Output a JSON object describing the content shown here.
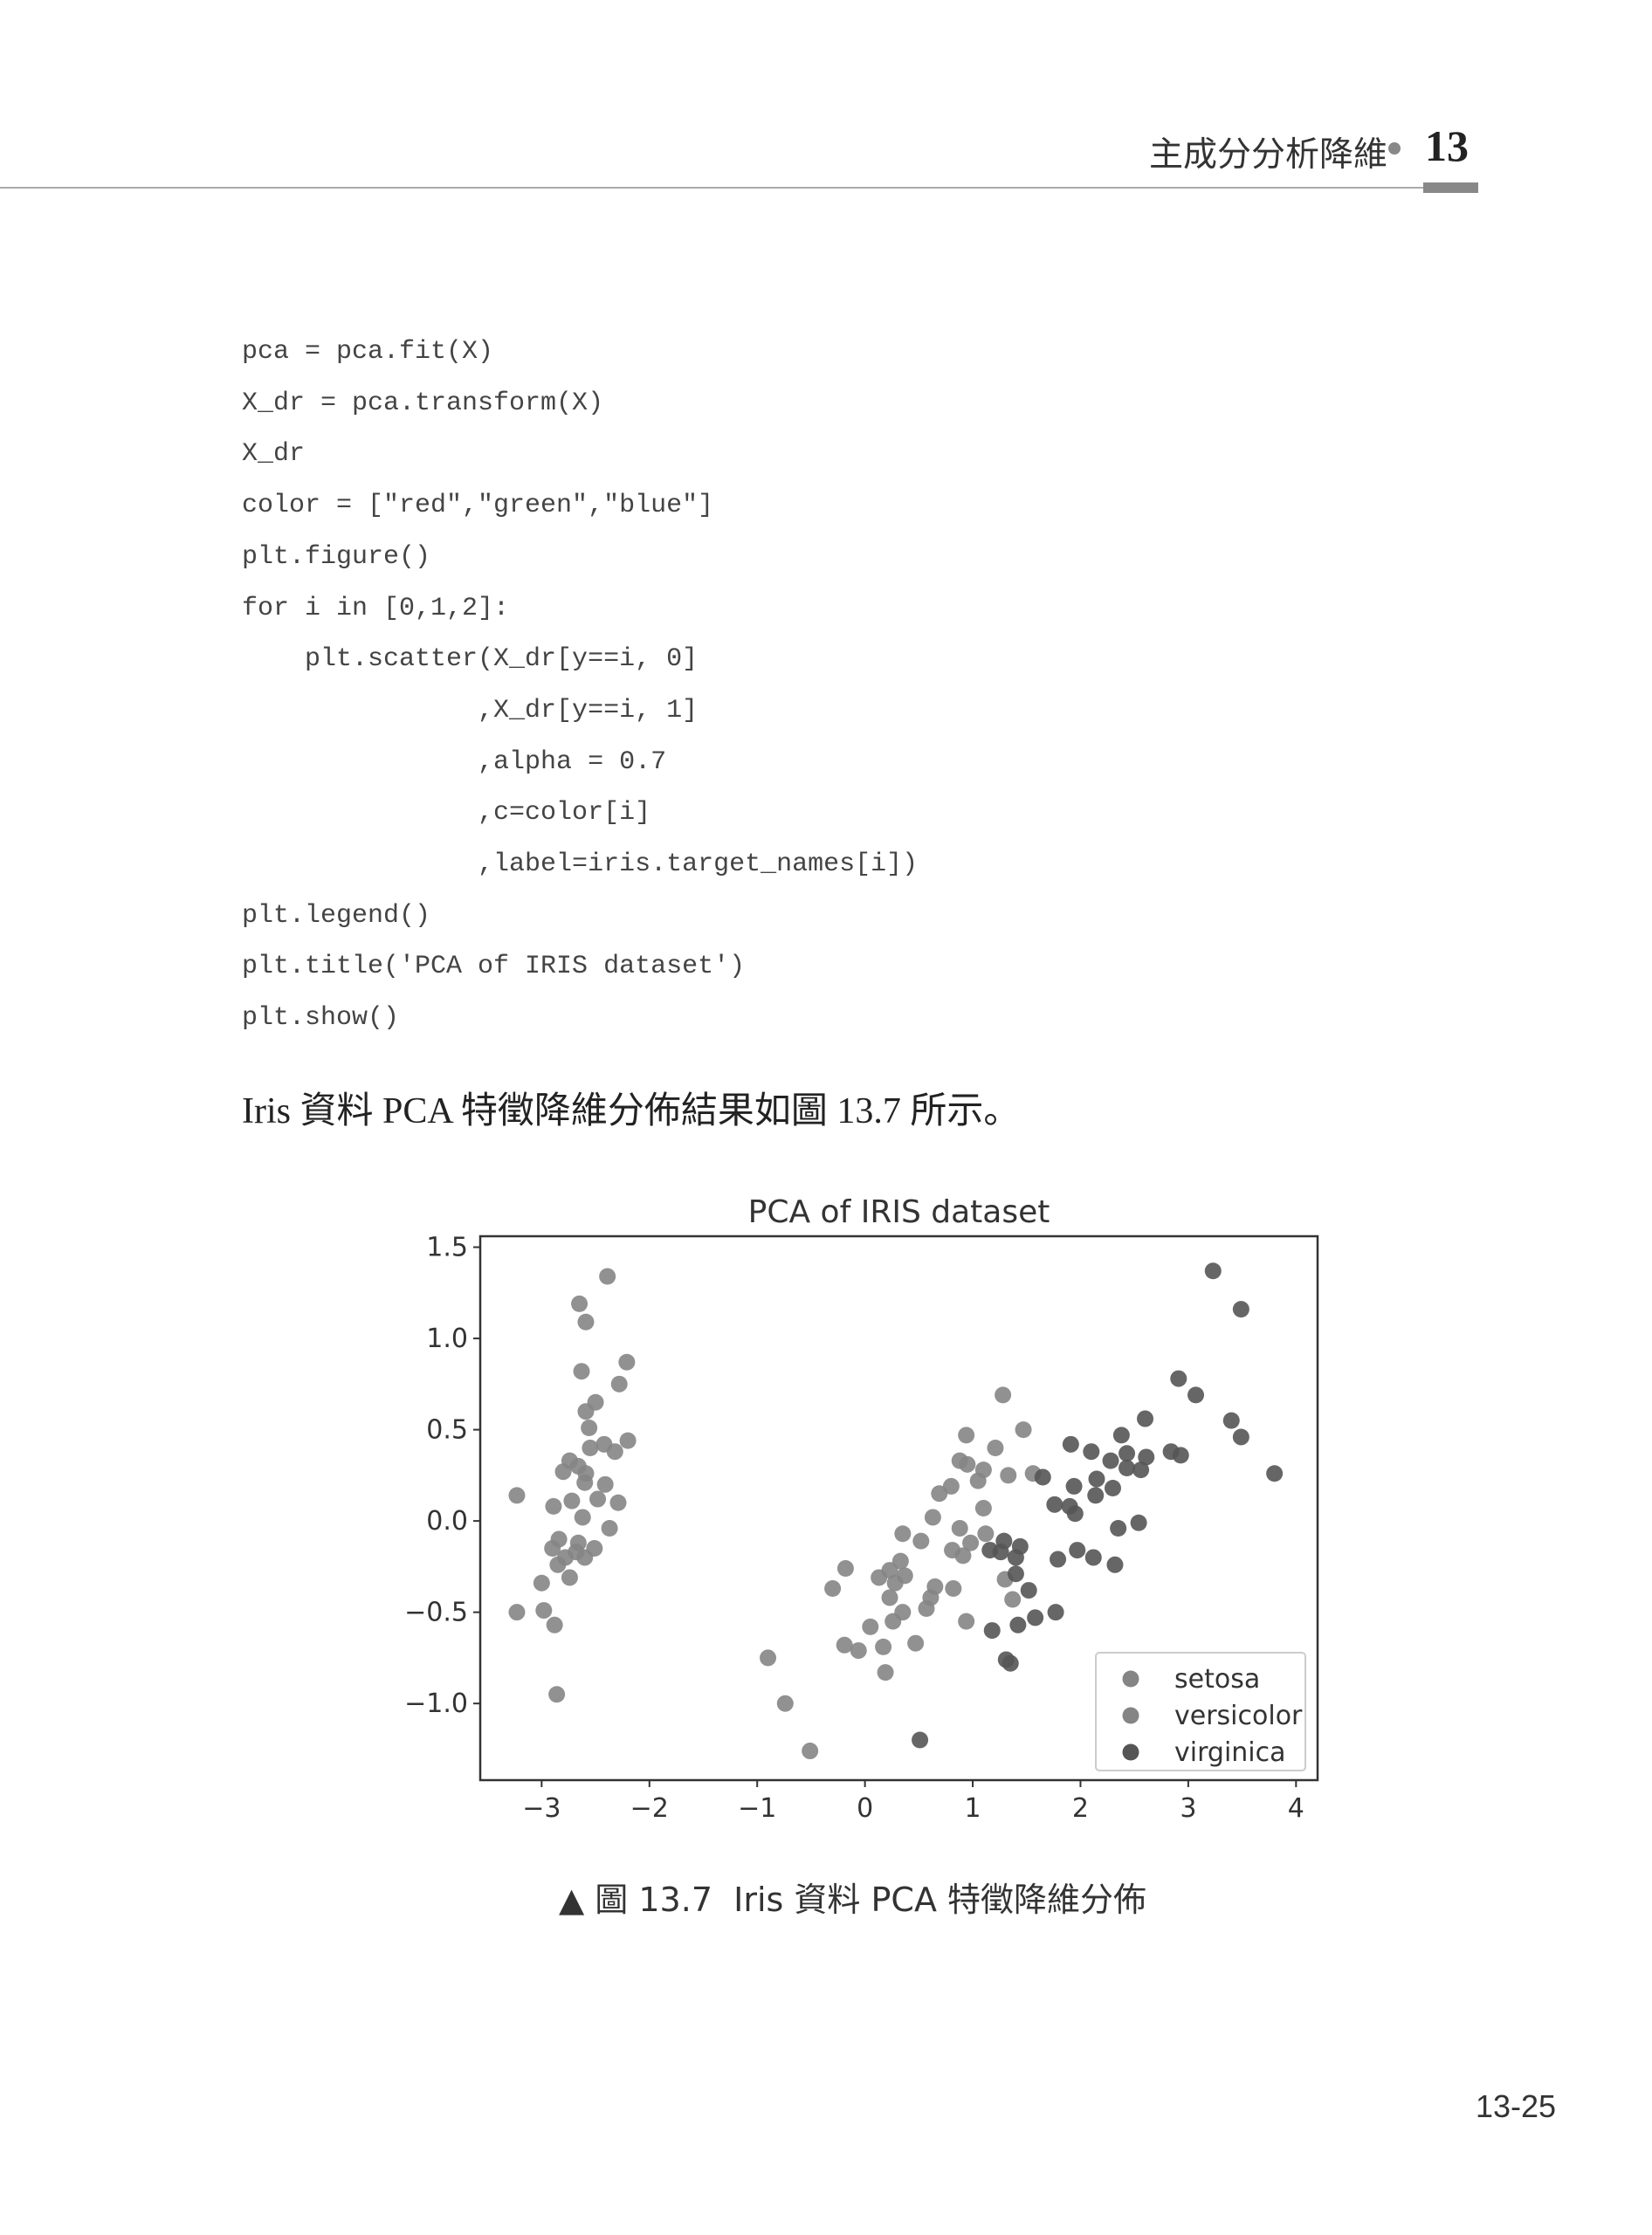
{
  "header": {
    "chapter_title": "主成分分析降維",
    "chapter_number": "13"
  },
  "code_lines": [
    "pca = pca.fit(X)",
    "X_dr = pca.transform(X)",
    "X_dr",
    "color = [\"red\",\"green\",\"blue\"]",
    "plt.figure()",
    "for i in [0,1,2]:",
    "    plt.scatter(X_dr[y==i, 0]",
    "               ,X_dr[y==i, 1]",
    "               ,alpha = 0.7",
    "               ,c=color[i]",
    "               ,label=iris.target_names[i])",
    "plt.legend()",
    "plt.title('PCA of IRIS dataset')",
    "plt.show()"
  ],
  "paragraph": "Iris 資料 PCA 特徵降維分佈結果如圖 13.7 所示。",
  "caption": "▲ 圖 13.7  Iris 資料 PCA 特徵降維分佈",
  "page_number": "13-25",
  "chart_data": {
    "type": "scatter",
    "title": "PCA of IRIS dataset",
    "xlabel": "",
    "ylabel": "",
    "xlim": [
      -3.57,
      4.2
    ],
    "ylim": [
      -1.42,
      1.56
    ],
    "xticks": [
      -3,
      -2,
      -1,
      0,
      1,
      2,
      3,
      4
    ],
    "yticks": [
      -1.0,
      -0.5,
      0.0,
      0.5,
      1.0,
      1.5
    ],
    "xtick_labels": [
      "−3",
      "−2",
      "−1",
      "0",
      "1",
      "2",
      "3",
      "4"
    ],
    "ytick_labels": [
      "−1.0",
      "−0.5",
      "0.0",
      "0.5",
      "1.0",
      "1.5"
    ],
    "grid": false,
    "legend_placement": "lower-right",
    "series": [
      {
        "name": "setosa",
        "color": "#858585",
        "points": [
          [
            -3.23,
            0.14
          ],
          [
            -2.39,
            1.34
          ],
          [
            -2.65,
            1.19
          ],
          [
            -2.59,
            1.09
          ],
          [
            -2.63,
            0.82
          ],
          [
            -2.21,
            0.87
          ],
          [
            -2.28,
            0.75
          ],
          [
            -2.5,
            0.65
          ],
          [
            -2.59,
            0.6
          ],
          [
            -2.56,
            0.51
          ],
          [
            -2.2,
            0.44
          ],
          [
            -2.42,
            0.42
          ],
          [
            -2.32,
            0.38
          ],
          [
            -2.55,
            0.4
          ],
          [
            -2.74,
            0.33
          ],
          [
            -2.8,
            0.27
          ],
          [
            -2.66,
            0.3
          ],
          [
            -2.6,
            0.21
          ],
          [
            -2.41,
            0.2
          ],
          [
            -2.48,
            0.12
          ],
          [
            -2.29,
            0.1
          ],
          [
            -2.89,
            0.08
          ],
          [
            -2.72,
            0.11
          ],
          [
            -2.62,
            0.02
          ],
          [
            -2.37,
            -0.04
          ],
          [
            -2.84,
            -0.1
          ],
          [
            -2.9,
            -0.15
          ],
          [
            -2.66,
            -0.12
          ],
          [
            -2.51,
            -0.15
          ],
          [
            -2.78,
            -0.2
          ],
          [
            -2.6,
            -0.2
          ],
          [
            -2.85,
            -0.24
          ],
          [
            -2.74,
            -0.31
          ],
          [
            -3.0,
            -0.34
          ],
          [
            -3.23,
            -0.5
          ],
          [
            -2.98,
            -0.49
          ],
          [
            -2.88,
            -0.57
          ],
          [
            -2.86,
            -0.95
          ],
          [
            -2.59,
            0.26
          ],
          [
            -2.68,
            -0.17
          ]
        ]
      },
      {
        "name": "versicolor",
        "color": "#858585",
        "points": [
          [
            1.28,
            0.69
          ],
          [
            0.94,
            0.47
          ],
          [
            1.47,
            0.5
          ],
          [
            1.21,
            0.4
          ],
          [
            0.88,
            0.33
          ],
          [
            0.95,
            0.31
          ],
          [
            1.1,
            0.28
          ],
          [
            1.33,
            0.25
          ],
          [
            1.56,
            0.26
          ],
          [
            1.05,
            0.22
          ],
          [
            0.8,
            0.19
          ],
          [
            0.69,
            0.15
          ],
          [
            1.1,
            0.07
          ],
          [
            0.63,
            0.02
          ],
          [
            0.35,
            -0.07
          ],
          [
            0.52,
            -0.11
          ],
          [
            0.88,
            -0.04
          ],
          [
            1.12,
            -0.07
          ],
          [
            0.98,
            -0.12
          ],
          [
            0.81,
            -0.16
          ],
          [
            0.91,
            -0.19
          ],
          [
            -0.18,
            -0.26
          ],
          [
            0.33,
            -0.22
          ],
          [
            0.23,
            -0.27
          ],
          [
            0.13,
            -0.31
          ],
          [
            0.37,
            -0.3
          ],
          [
            0.28,
            -0.34
          ],
          [
            -0.3,
            -0.37
          ],
          [
            0.65,
            -0.36
          ],
          [
            0.82,
            -0.37
          ],
          [
            0.61,
            -0.42
          ],
          [
            0.23,
            -0.42
          ],
          [
            1.3,
            -0.32
          ],
          [
            1.37,
            -0.43
          ],
          [
            0.57,
            -0.48
          ],
          [
            0.35,
            -0.5
          ],
          [
            0.26,
            -0.55
          ],
          [
            0.94,
            -0.55
          ],
          [
            0.05,
            -0.58
          ],
          [
            -0.19,
            -0.68
          ],
          [
            -0.06,
            -0.71
          ],
          [
            0.17,
            -0.69
          ],
          [
            0.47,
            -0.67
          ],
          [
            0.19,
            -0.83
          ],
          [
            -0.9,
            -0.75
          ],
          [
            -0.74,
            -1.0
          ],
          [
            -0.51,
            -1.26
          ]
        ]
      },
      {
        "name": "virginica",
        "color": "#555555",
        "points": [
          [
            3.23,
            1.37
          ],
          [
            3.49,
            1.16
          ],
          [
            2.91,
            0.78
          ],
          [
            3.07,
            0.69
          ],
          [
            3.4,
            0.55
          ],
          [
            3.49,
            0.46
          ],
          [
            3.8,
            0.26
          ],
          [
            2.6,
            0.56
          ],
          [
            2.38,
            0.47
          ],
          [
            1.91,
            0.42
          ],
          [
            2.1,
            0.38
          ],
          [
            2.28,
            0.33
          ],
          [
            2.43,
            0.37
          ],
          [
            2.43,
            0.29
          ],
          [
            2.61,
            0.35
          ],
          [
            2.56,
            0.28
          ],
          [
            2.84,
            0.38
          ],
          [
            2.93,
            0.36
          ],
          [
            1.65,
            0.24
          ],
          [
            2.15,
            0.23
          ],
          [
            2.3,
            0.18
          ],
          [
            1.94,
            0.19
          ],
          [
            2.14,
            0.14
          ],
          [
            1.76,
            0.09
          ],
          [
            1.9,
            0.08
          ],
          [
            1.95,
            0.04
          ],
          [
            2.54,
            -0.01
          ],
          [
            2.35,
            -0.04
          ],
          [
            1.29,
            -0.11
          ],
          [
            1.16,
            -0.16
          ],
          [
            1.44,
            -0.14
          ],
          [
            1.26,
            -0.17
          ],
          [
            1.4,
            -0.2
          ],
          [
            1.79,
            -0.21
          ],
          [
            1.97,
            -0.16
          ],
          [
            2.12,
            -0.2
          ],
          [
            2.32,
            -0.24
          ],
          [
            1.4,
            -0.29
          ],
          [
            1.52,
            -0.38
          ],
          [
            1.77,
            -0.5
          ],
          [
            1.58,
            -0.53
          ],
          [
            1.42,
            -0.57
          ],
          [
            1.18,
            -0.6
          ],
          [
            1.31,
            -0.76
          ],
          [
            1.35,
            -0.78
          ],
          [
            0.51,
            -1.2
          ]
        ]
      }
    ]
  }
}
